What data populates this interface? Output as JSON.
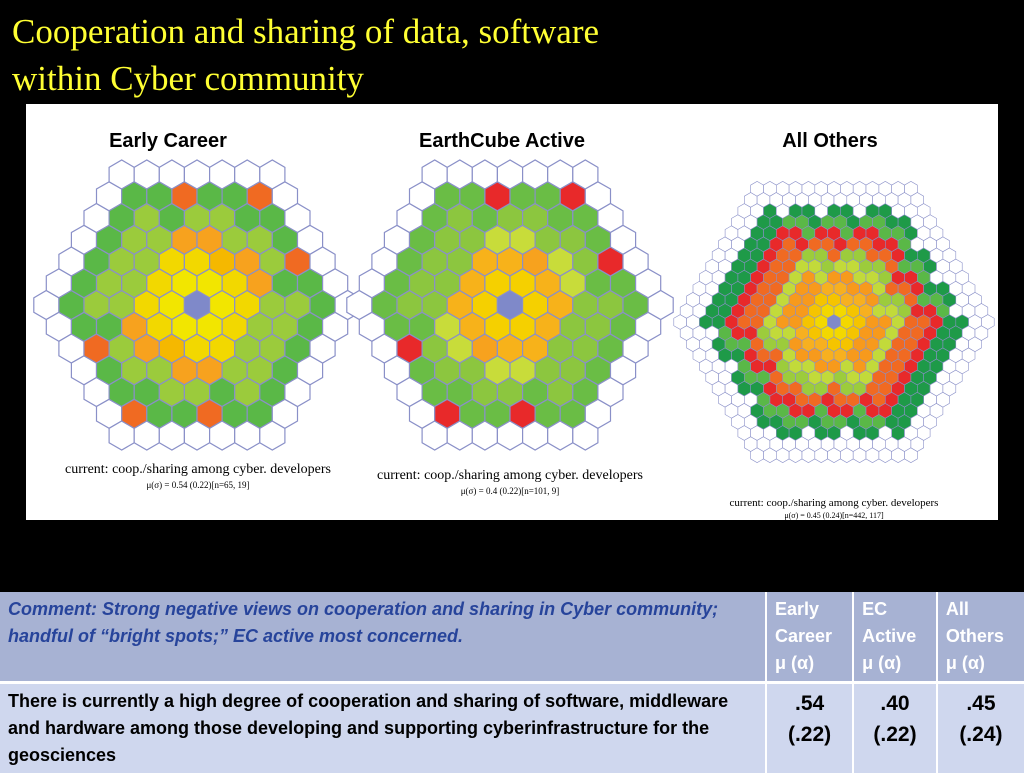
{
  "header": {
    "title_line1": "Cooperation and sharing of data, software",
    "title_line2": "within Cyber community"
  },
  "panels": [
    {
      "title": "Early Career",
      "caption": "current: coop./sharing among cyber. developers",
      "stats": "μ(σ) = 0.54 (0.22)[n=65, 19]"
    },
    {
      "title": "EarthCube Active",
      "caption": "current: coop./sharing among cyber. developers",
      "stats": "μ(σ) = 0.4 (0.22)[n=101, 9]"
    },
    {
      "title": "All Others",
      "caption": "current: coop./sharing among cyber. developers",
      "stats": "μ(σ) = 0.45 (0.24)[n=442, 117]"
    }
  ],
  "table": {
    "comment": "Comment: Strong negative views on cooperation and sharing in Cyber community; handful of “bright spots;” EC active most concerned.",
    "headers": [
      [
        "Early",
        "Career",
        "μ (α)"
      ],
      [
        "EC",
        "Active",
        "μ (α)"
      ],
      [
        "All",
        "Others",
        "μ (α)"
      ]
    ],
    "statement": "There is currently a high degree of cooperation and sharing of software, middleware and hardware among those developing and supporting cyberinfrastructure for the geosciences",
    "values": [
      [
        ".54",
        "(.22)"
      ],
      [
        ".40",
        "(.22)"
      ],
      [
        ".45",
        "(.24)"
      ]
    ]
  }
}
